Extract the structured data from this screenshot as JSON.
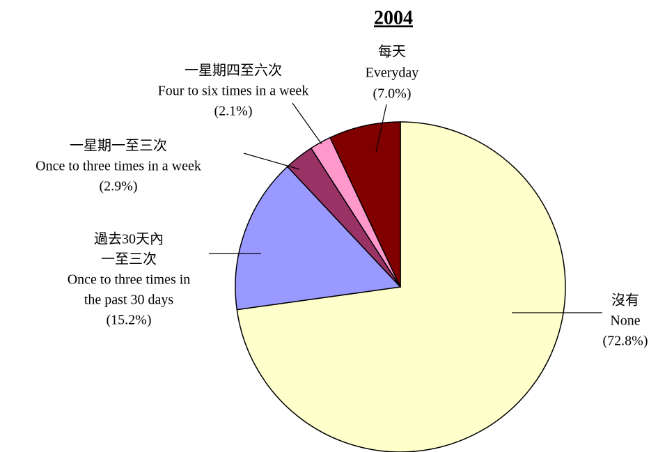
{
  "chart_data": {
    "type": "pie",
    "title": "2004",
    "categories": [
      [
        "沒有",
        "None"
      ],
      [
        "過去30天內",
        "一至三次",
        "Once to three times in",
        "the past 30 days"
      ],
      [
        "一星期一至三次",
        "Once to three times in a week"
      ],
      [
        "一星期四至六次",
        "Four to six times in a week"
      ],
      [
        "每天",
        "Everyday"
      ]
    ],
    "values": [
      72.8,
      15.2,
      2.9,
      2.1,
      7.0
    ],
    "value_labels": [
      "(72.8%)",
      "(15.2%)",
      "(2.9%)",
      "(2.1%)",
      "(7.0%)"
    ],
    "colors": [
      "#ffffcc",
      "#9999ff",
      "#993366",
      "#ff99cc",
      "#800000"
    ]
  }
}
